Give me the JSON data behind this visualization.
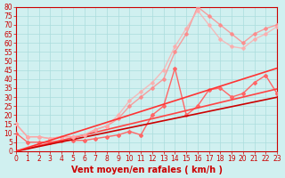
{
  "title": "",
  "xlabel": "Vent moyen/en rafales ( km/h )",
  "ylabel": "",
  "background_color": "#d0f0f0",
  "grid_color": "#aadddd",
  "x_values": [
    0,
    1,
    2,
    3,
    4,
    5,
    6,
    7,
    8,
    9,
    10,
    11,
    12,
    13,
    14,
    15,
    16,
    17,
    18,
    19,
    20,
    21,
    22,
    23
  ],
  "series": [
    {
      "color": "#ff6666",
      "alpha": 1.0,
      "linewidth": 1.0,
      "marker": "D",
      "markersize": 2,
      "data": [
        10,
        5,
        5,
        5,
        6,
        6,
        6,
        7,
        8,
        9,
        11,
        9,
        20,
        25,
        46,
        20,
        25,
        34,
        35,
        30,
        32,
        38,
        42,
        32
      ]
    },
    {
      "color": "#ff4444",
      "alpha": 1.0,
      "linewidth": 1.2,
      "marker": null,
      "markersize": 0,
      "data": [
        0,
        1.5,
        3,
        4.5,
        6,
        7.5,
        9,
        10.5,
        12,
        13.5,
        15,
        16.5,
        18,
        19.5,
        21,
        22.5,
        24,
        25.5,
        27,
        28.5,
        30,
        31.5,
        33,
        34.5
      ]
    },
    {
      "color": "#cc0000",
      "alpha": 1.0,
      "linewidth": 1.2,
      "marker": null,
      "markersize": 0,
      "data": [
        0,
        1.3,
        2.6,
        3.9,
        5.2,
        6.5,
        7.8,
        9.1,
        10.4,
        11.7,
        13,
        14.3,
        15.6,
        16.9,
        18.2,
        19.5,
        20.8,
        22.1,
        23.4,
        24.7,
        26,
        27.3,
        28.6,
        29.9
      ]
    },
    {
      "color": "#ff8888",
      "alpha": 0.8,
      "linewidth": 1.0,
      "marker": "D",
      "markersize": 2,
      "data": [
        15,
        8,
        8,
        7,
        8,
        8,
        9,
        12,
        14,
        18,
        25,
        30,
        35,
        40,
        55,
        65,
        80,
        75,
        70,
        65,
        60,
        65,
        68,
        70
      ]
    },
    {
      "color": "#ffaaaa",
      "alpha": 0.75,
      "linewidth": 1.0,
      "marker": "D",
      "markersize": 2,
      "data": [
        15,
        8,
        8,
        7,
        8,
        8,
        9,
        12,
        14,
        20,
        28,
        33,
        38,
        45,
        58,
        68,
        78,
        70,
        62,
        58,
        57,
        62,
        65,
        69
      ]
    },
    {
      "color": "#ff3333",
      "alpha": 1.0,
      "linewidth": 1.2,
      "marker": null,
      "markersize": 0,
      "data": [
        0,
        2.0,
        4.0,
        6.0,
        8.0,
        10.0,
        12.0,
        14.0,
        16.0,
        18.0,
        20.0,
        22.0,
        24.0,
        26.0,
        28.0,
        30.0,
        32.0,
        34.0,
        36.0,
        38.0,
        40.0,
        42.0,
        44.0,
        46.0
      ]
    }
  ],
  "ylim": [
    0,
    80
  ],
  "xlim": [
    0,
    23
  ],
  "yticks": [
    0,
    5,
    10,
    15,
    20,
    25,
    30,
    35,
    40,
    45,
    50,
    55,
    60,
    65,
    70,
    75,
    80
  ],
  "xticks": [
    0,
    1,
    2,
    3,
    4,
    5,
    6,
    7,
    8,
    9,
    10,
    11,
    12,
    13,
    14,
    15,
    16,
    17,
    18,
    19,
    20,
    21,
    22,
    23
  ],
  "tick_color": "#cc0000",
  "tick_fontsize": 5.5,
  "xlabel_fontsize": 7,
  "xlabel_color": "#cc0000",
  "xlabel_bold": true
}
